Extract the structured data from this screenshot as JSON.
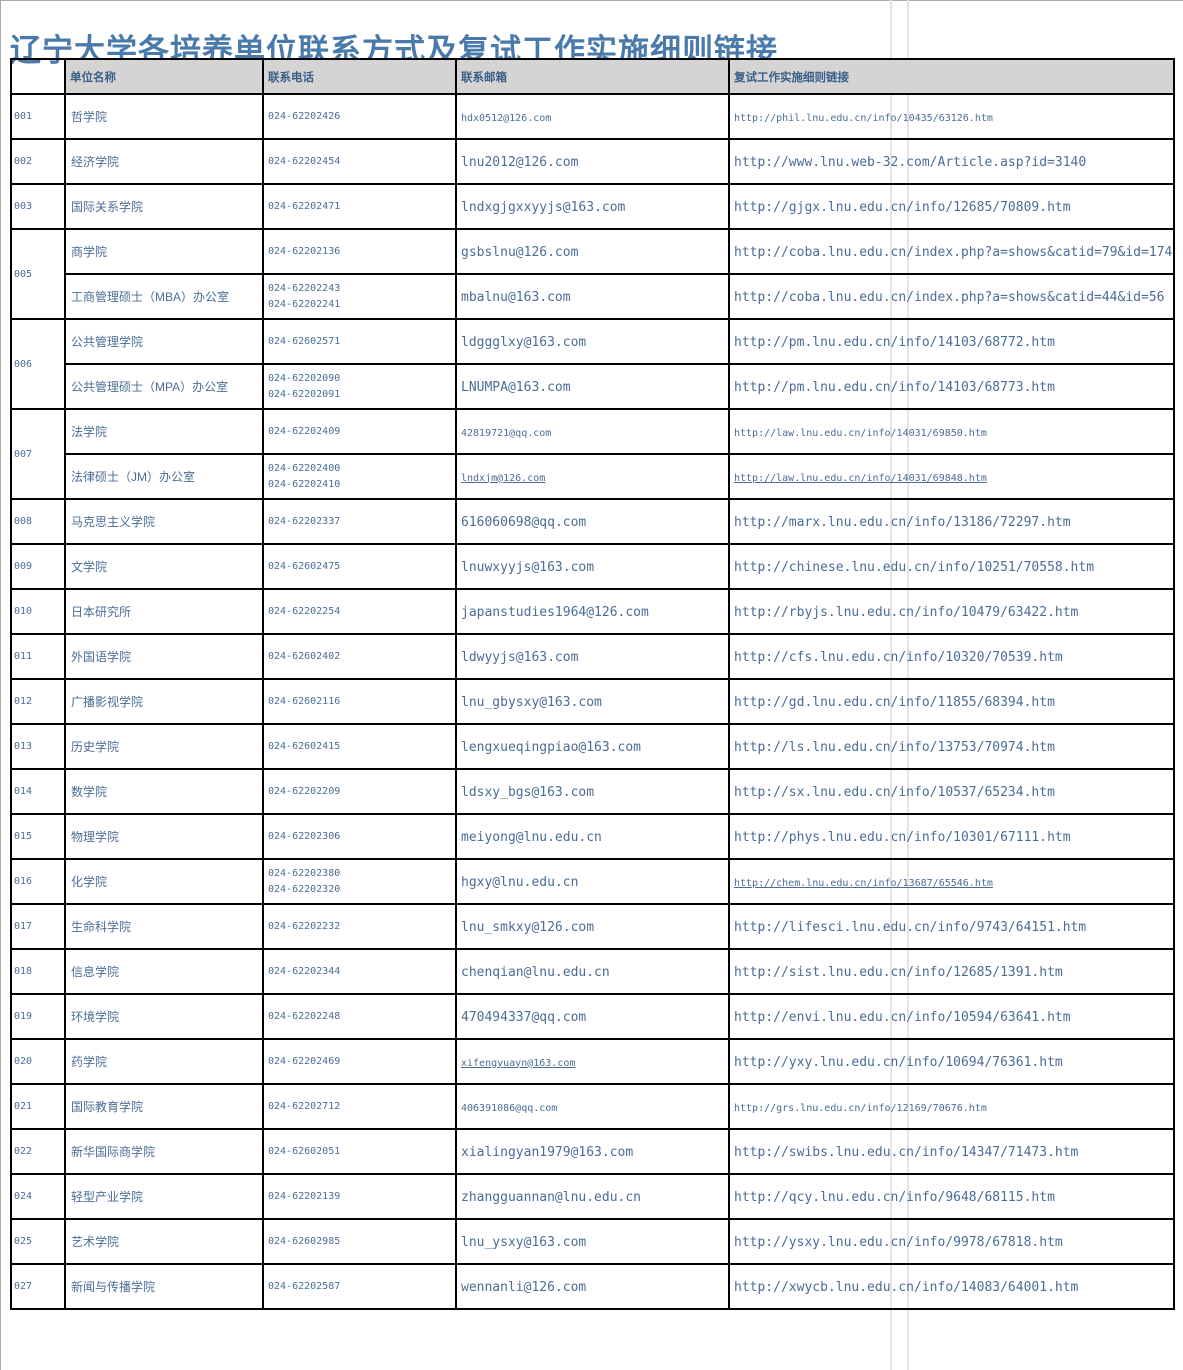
{
  "page": {
    "title": "辽宁大学各培养单位联系方式及复试工作实施细则链接"
  },
  "colors": {
    "text": "#4a6d96",
    "header_text": "#3a5f8a",
    "title_text": "#4a7aab",
    "header_bg": "#d4d4d4",
    "grid_border": "#000000",
    "pagebreak_line": "#e4e4e4"
  },
  "table": {
    "headers": [
      "单位名称",
      "联系电话",
      "联系邮箱",
      "复试工作实施细则链接"
    ],
    "groups": [
      {
        "no": "001",
        "entries": [
          {
            "unit": "哲学院",
            "phones": [
              "024-62202426"
            ],
            "email": {
              "text": "hdx0512@126.com",
              "size": "sm",
              "underline": false
            },
            "link": {
              "text": "http://phil.lnu.edu.cn/info/10435/63126.htm",
              "size": "sm",
              "underline": false
            }
          }
        ]
      },
      {
        "no": "002",
        "entries": [
          {
            "unit": "经济学院",
            "phones": [
              "024-62202454"
            ],
            "email": {
              "text": "lnu2012@126.com",
              "size": "md",
              "underline": false
            },
            "link": {
              "text": "http://www.lnu.web-32.com/Article.asp?id=3140",
              "size": "md",
              "underline": false
            }
          }
        ]
      },
      {
        "no": "003",
        "entries": [
          {
            "unit": "国际关系学院",
            "phones": [
              "024-62202471"
            ],
            "email": {
              "text": "lndxgjgxxyyjs@163.com",
              "size": "md",
              "underline": false
            },
            "link": {
              "text": "http://gjgx.lnu.edu.cn/info/12685/70809.htm",
              "size": "md",
              "underline": false
            }
          }
        ]
      },
      {
        "no": "005",
        "entries": [
          {
            "unit": "商学院",
            "phones": [
              "024-62202136"
            ],
            "email": {
              "text": "gsbslnu@126.com",
              "size": "md",
              "underline": false
            },
            "link": {
              "text": "http://coba.lnu.edu.cn/index.php?a=shows&catid=79&id=174",
              "size": "md",
              "underline": false
            }
          },
          {
            "unit": "工商管理硕士（MBA）办公室",
            "phones": [
              "024-62202243",
              "024-62202241"
            ],
            "email": {
              "text": "mbalnu@163.com",
              "size": "md",
              "underline": false
            },
            "link": {
              "text": "http://coba.lnu.edu.cn/index.php?a=shows&catid=44&id=56",
              "size": "md",
              "underline": false
            }
          }
        ]
      },
      {
        "no": "006",
        "entries": [
          {
            "unit": "公共管理学院",
            "phones": [
              "024-62602571"
            ],
            "email": {
              "text": "ldggglxy@163.com",
              "size": "md",
              "underline": false
            },
            "link": {
              "text": "http://pm.lnu.edu.cn/info/14103/68772.htm",
              "size": "md",
              "underline": false
            }
          },
          {
            "unit": "公共管理硕士（MPA）办公室",
            "phones": [
              "024-62202090",
              "024-62202091"
            ],
            "email": {
              "text": "LNUMPA@163.com",
              "size": "md",
              "underline": false
            },
            "link": {
              "text": "http://pm.lnu.edu.cn/info/14103/68773.htm",
              "size": "md",
              "underline": false
            }
          }
        ]
      },
      {
        "no": "007",
        "entries": [
          {
            "unit": "法学院",
            "phones": [
              "024-62202409"
            ],
            "email": {
              "text": "42819721@qq.com",
              "size": "sm",
              "underline": false
            },
            "link": {
              "text": "http://law.lnu.edu.cn/info/14031/69850.htm",
              "size": "sm",
              "underline": false
            }
          },
          {
            "unit": "法律硕士（JM）办公室",
            "phones": [
              "024-62202400",
              "024-62202410"
            ],
            "email": {
              "text": "lndxjm@126.com",
              "size": "sm",
              "underline": true
            },
            "link": {
              "text": "http://law.lnu.edu.cn/info/14031/69848.htm",
              "size": "sm",
              "underline": true
            }
          }
        ]
      },
      {
        "no": "008",
        "entries": [
          {
            "unit": "马克思主义学院",
            "phones": [
              "024-62202337"
            ],
            "email": {
              "text": "616060698@qq.com",
              "size": "md",
              "underline": false
            },
            "link": {
              "text": "http://marx.lnu.edu.cn/info/13186/72297.htm",
              "size": "md",
              "underline": false
            }
          }
        ]
      },
      {
        "no": "009",
        "entries": [
          {
            "unit": "文学院",
            "phones": [
              "024-62602475"
            ],
            "email": {
              "text": "lnuwxyyjs@163.com",
              "size": "md",
              "underline": false
            },
            "link": {
              "text": "http://chinese.lnu.edu.cn/info/10251/70558.htm",
              "size": "md",
              "underline": false
            }
          }
        ]
      },
      {
        "no": "010",
        "entries": [
          {
            "unit": "日本研究所",
            "phones": [
              "024-62202254"
            ],
            "email": {
              "text": "japanstudies1964@126.com",
              "size": "md",
              "underline": false
            },
            "link": {
              "text": "http://rbyjs.lnu.edu.cn/info/10479/63422.htm",
              "size": "md",
              "underline": false
            }
          }
        ]
      },
      {
        "no": "011",
        "entries": [
          {
            "unit": "外国语学院",
            "phones": [
              "024-62602402"
            ],
            "email": {
              "text": "ldwyyjs@163.com",
              "size": "md",
              "underline": false
            },
            "link": {
              "text": "http://cfs.lnu.edu.cn/info/10320/70539.htm",
              "size": "md",
              "underline": false
            }
          }
        ]
      },
      {
        "no": "012",
        "entries": [
          {
            "unit": "广播影视学院",
            "phones": [
              "024-62602116"
            ],
            "email": {
              "text": "lnu_gbysxy@163.com",
              "size": "md",
              "underline": false
            },
            "link": {
              "text": "http://gd.lnu.edu.cn/info/11855/68394.htm",
              "size": "md",
              "underline": false
            }
          }
        ]
      },
      {
        "no": "013",
        "entries": [
          {
            "unit": "历史学院",
            "phones": [
              "024-62602415"
            ],
            "email": {
              "text": "lengxueqingpiao@163.com",
              "size": "md",
              "underline": false
            },
            "link": {
              "text": "http://ls.lnu.edu.cn/info/13753/70974.htm",
              "size": "md",
              "underline": false
            }
          }
        ]
      },
      {
        "no": "014",
        "entries": [
          {
            "unit": "数学院",
            "phones": [
              "024-62202209"
            ],
            "email": {
              "text": "ldsxy_bgs@163.com",
              "size": "md",
              "underline": false
            },
            "link": {
              "text": "http://sx.lnu.edu.cn/info/10537/65234.htm",
              "size": "md",
              "underline": false
            }
          }
        ]
      },
      {
        "no": "015",
        "entries": [
          {
            "unit": "物理学院",
            "phones": [
              "024-62202306"
            ],
            "email": {
              "text": "meiyong@lnu.edu.cn",
              "size": "md",
              "underline": false
            },
            "link": {
              "text": "http://phys.lnu.edu.cn/info/10301/67111.htm",
              "size": "md",
              "underline": false
            }
          }
        ]
      },
      {
        "no": "016",
        "entries": [
          {
            "unit": "化学院",
            "phones": [
              "024-62202380",
              "024-62202320"
            ],
            "email": {
              "text": "hgxy@lnu.edu.cn",
              "size": "md",
              "underline": false
            },
            "link": {
              "text": "http://chem.lnu.edu.cn/info/13687/65546.htm",
              "size": "sm",
              "underline": true
            }
          }
        ]
      },
      {
        "no": "017",
        "entries": [
          {
            "unit": "生命科学院",
            "phones": [
              "024-62202232"
            ],
            "email": {
              "text": "lnu_smkxy@126.com",
              "size": "md",
              "underline": false
            },
            "link": {
              "text": "http://lifesci.lnu.edu.cn/info/9743/64151.htm",
              "size": "md",
              "underline": false
            }
          }
        ]
      },
      {
        "no": "018",
        "entries": [
          {
            "unit": "信息学院",
            "phones": [
              "024-62202344"
            ],
            "email": {
              "text": "chenqian@lnu.edu.cn",
              "size": "md",
              "underline": false
            },
            "link": {
              "text": "http://sist.lnu.edu.cn/info/12685/1391.htm",
              "size": "md",
              "underline": false
            }
          }
        ]
      },
      {
        "no": "019",
        "entries": [
          {
            "unit": "环境学院",
            "phones": [
              "024-62202248"
            ],
            "email": {
              "text": "470494337@qq.com",
              "size": "md",
              "underline": false
            },
            "link": {
              "text": "http://envi.lnu.edu.cn/info/10594/63641.htm",
              "size": "md",
              "underline": false
            }
          }
        ]
      },
      {
        "no": "020",
        "entries": [
          {
            "unit": "药学院",
            "phones": [
              "024-62202469"
            ],
            "email": {
              "text": "xifengyuayn@163.com",
              "size": "sm",
              "underline": true
            },
            "link": {
              "text": "http://yxy.lnu.edu.cn/info/10694/76361.htm",
              "size": "md",
              "underline": false
            }
          }
        ]
      },
      {
        "no": "021",
        "entries": [
          {
            "unit": "国际教育学院",
            "phones": [
              "024-62202712"
            ],
            "email": {
              "text": "406391086@qq.com",
              "size": "sm",
              "underline": false
            },
            "link": {
              "text": "http://grs.lnu.edu.cn/info/12169/70676.htm",
              "size": "sm",
              "underline": false
            }
          }
        ]
      },
      {
        "no": "022",
        "entries": [
          {
            "unit": "新华国际商学院",
            "phones": [
              "024-62602051"
            ],
            "email": {
              "text": "xialingyan1979@163.com",
              "size": "md",
              "underline": false
            },
            "link": {
              "text": "http://swibs.lnu.edu.cn/info/14347/71473.htm",
              "size": "md",
              "underline": false
            }
          }
        ]
      },
      {
        "no": "024",
        "entries": [
          {
            "unit": "轻型产业学院",
            "phones": [
              "024-62202139"
            ],
            "email": {
              "text": "zhangguannan@lnu.edu.cn",
              "size": "md",
              "underline": false
            },
            "link": {
              "text": "http://qcy.lnu.edu.cn/info/9648/68115.htm",
              "size": "md",
              "underline": false
            }
          }
        ]
      },
      {
        "no": "025",
        "entries": [
          {
            "unit": "艺术学院",
            "phones": [
              "024-62602985"
            ],
            "email": {
              "text": "lnu_ysxy@163.com",
              "size": "md",
              "underline": false
            },
            "link": {
              "text": "http://ysxy.lnu.edu.cn/info/9978/67818.htm",
              "size": "md",
              "underline": false
            }
          }
        ]
      },
      {
        "no": "027",
        "entries": [
          {
            "unit": "新闻与传播学院",
            "phones": [
              "024-62202587"
            ],
            "email": {
              "text": "wennanli@126.com",
              "size": "md",
              "underline": false
            },
            "link": {
              "text": "http://xwycb.lnu.edu.cn/info/14083/64001.htm",
              "size": "md",
              "underline": false
            }
          }
        ]
      }
    ]
  }
}
